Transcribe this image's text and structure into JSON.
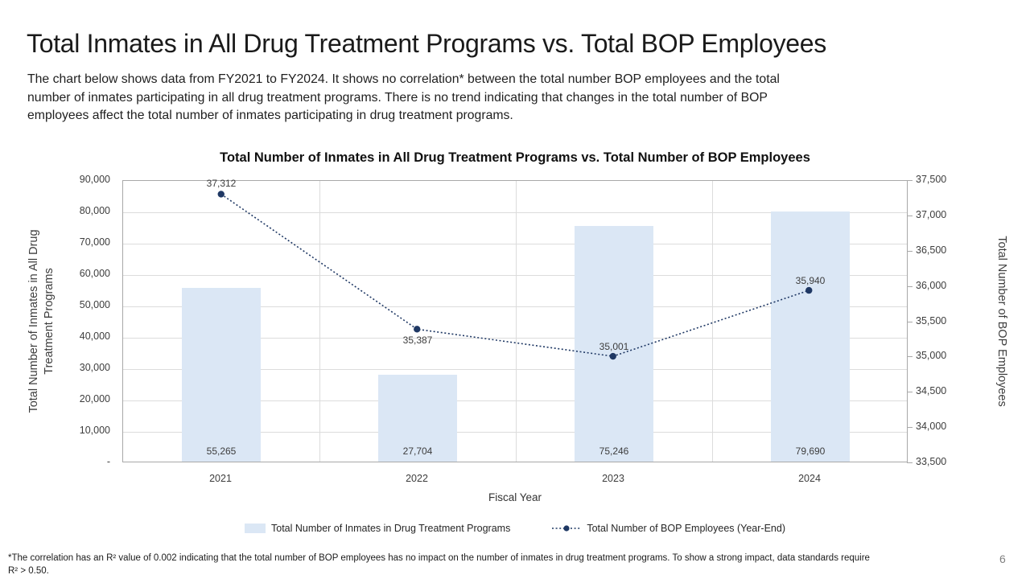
{
  "slide": {
    "title": "Total Inmates in All Drug Treatment Programs vs. Total BOP Employees",
    "subtitle_lines": [
      "The chart below shows data from FY2021 to FY2024. It shows no correlation* between the total number BOP employees and the total",
      "number of inmates participating in all drug treatment programs. There is no trend indicating that changes in the total number of BOP",
      "employees affect the total number of inmates participating in drug treatment programs."
    ],
    "footnote_lines": [
      "*The correlation has an R² value of 0.002 indicating that the total number of BOP employees has no impact on the number of inmates in drug treatment programs. To show a strong impact, data standards require",
      "R² > 0.50."
    ],
    "page_number": "6"
  },
  "chart_data": {
    "type": "combo (bar + line, dual axis)",
    "title": "Total Number of Inmates in All Drug Treatment Programs vs. Total Number of BOP Employees",
    "categories": [
      "2021",
      "2022",
      "2023",
      "2024"
    ],
    "xlabel": "Fiscal Year",
    "grid": true,
    "legend_position": "bottom",
    "series": [
      {
        "name": "Total Number of Inmates in Drug Treatment Programs",
        "type": "bar",
        "axis": "left",
        "color": "#dbe7f5",
        "values": [
          55265,
          27704,
          75246,
          79690
        ],
        "data_labels": [
          "55,265",
          "27,704",
          "75,246",
          "79,690"
        ]
      },
      {
        "name": "Total Number of BOP Employees (Year-End)",
        "type": "line",
        "axis": "right",
        "color": "#1f3864",
        "line_style": "dotted",
        "marker": "circle",
        "values": [
          37312,
          35387,
          35001,
          35940
        ],
        "data_labels": [
          "37,312",
          "35,387",
          "35,001",
          "35,940"
        ],
        "label_positions": [
          "above",
          "below",
          "above",
          "above"
        ]
      }
    ],
    "left_axis": {
      "title": "Total Number of Inmates in All Drug Treatment Programs",
      "min": 0,
      "max": 90000,
      "step": 10000,
      "tick_labels": [
        "90,000",
        "80,000",
        "70,000",
        "60,000",
        "50,000",
        "40,000",
        "30,000",
        "20,000",
        "10,000",
        "-"
      ]
    },
    "right_axis": {
      "title": "Total Number of BOP Employees",
      "min": 33500,
      "max": 37500,
      "step": 500,
      "tick_labels": [
        "37,500",
        "37,000",
        "36,500",
        "36,000",
        "35,500",
        "35,000",
        "34,500",
        "34,000",
        "33,500"
      ]
    }
  }
}
